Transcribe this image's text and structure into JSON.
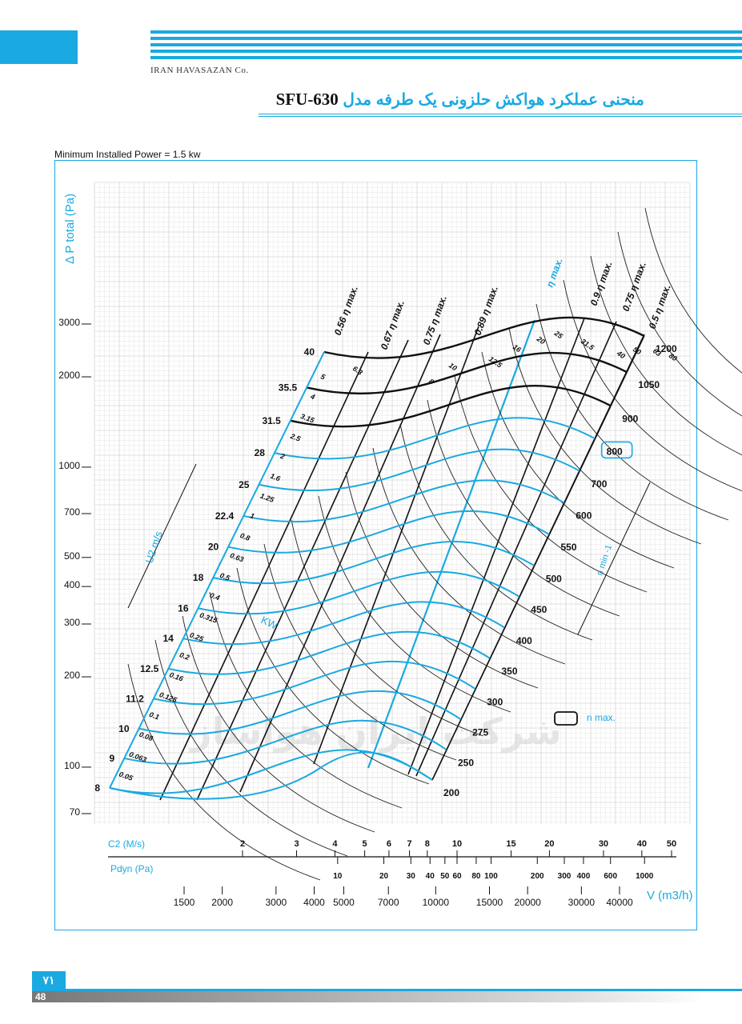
{
  "header": {
    "company": "IRAN HAVASAZAN Co.",
    "title_fa": "منحنی عملکرد هواکش حلزونی یک طرفه مدل",
    "model": "SFU-630",
    "min_power": "Minimum Installed Power = 1.5 kw"
  },
  "footer": {
    "page_fa": "۷۱",
    "page": "48"
  },
  "chart_data": {
    "type": "line",
    "title": "",
    "ylabel": "Δ P total (Pa)",
    "xlabel": "V (m3/h)",
    "y_scale": "log",
    "x_scale": "log",
    "y_ticks": [
      70,
      100,
      200,
      300,
      400,
      500,
      700,
      1000,
      2000,
      3000
    ],
    "x_ticks": [
      1500,
      2000,
      3000,
      4000,
      5000,
      7000,
      10000,
      15000,
      20000,
      30000,
      40000
    ],
    "c2_label": "C2 (M/s)",
    "c2_ticks": [
      2,
      3,
      4,
      5,
      6,
      7,
      8,
      10,
      15,
      20,
      30,
      40,
      50
    ],
    "pdyn_label": "Pdyn (Pa)",
    "pdyn_ticks": [
      10,
      20,
      30,
      40,
      50,
      60,
      80,
      100,
      200,
      300,
      400,
      600,
      1000
    ],
    "u2_label": "U2 m/s",
    "u2_values": [
      "40",
      "35.5",
      "31.5",
      "28",
      "25",
      "22.4",
      "20",
      "18",
      "16",
      "14",
      "12.5",
      "11.2",
      "10",
      "9",
      "8"
    ],
    "speed_label": "n min -1",
    "speed_values": [
      "1200",
      "1050",
      "900",
      "800",
      "700",
      "600",
      "550",
      "500",
      "450",
      "400",
      "350",
      "300",
      "275",
      "250",
      "200"
    ],
    "n_max_speed": "800",
    "n_max_label": "n max.",
    "power_label": "KW",
    "power_left": [
      "5",
      "4",
      "3.15",
      "2.5",
      "2",
      "1.6",
      "1.25",
      "1",
      "0.8",
      "0.63",
      "0.5",
      "0.4",
      "0.315",
      "0.25",
      "0.2",
      "0.16",
      "0.125",
      "0.1",
      "0.08",
      "0.063",
      "0.05"
    ],
    "power_top": [
      "6.3",
      "8",
      "10",
      "12.5",
      "16",
      "20",
      "25",
      "31.5",
      "40",
      "50",
      "63",
      "80"
    ],
    "efficiency_lines": [
      "0.56 η max.",
      "0.67 η max.",
      "0.75 η max.",
      "0.89 η max.",
      "η max.",
      "0.9 η max.",
      "0.75 η max.",
      "0.5 η max."
    ],
    "watermark": "شرکت ایران هواساز"
  }
}
